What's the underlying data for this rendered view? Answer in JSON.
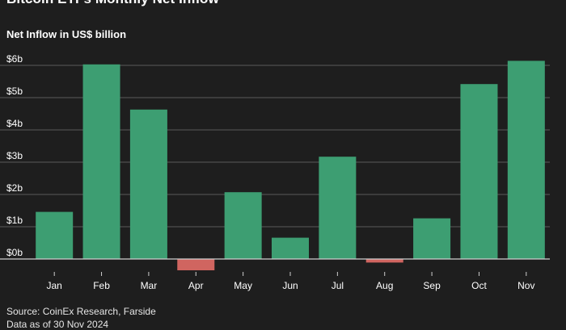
{
  "header": {
    "title": "Bitcoin ETFs Monthly Net Inflow",
    "subtitle": "Net Inflow in US$ billion"
  },
  "footer": {
    "source": "Source: CoinEx Research, Farside",
    "date_note": "Data as of 30 Nov 2024"
  },
  "colors": {
    "positive": "#3d9e72",
    "negative": "#d06560",
    "grid": "#5a5a5a",
    "zero_line": "#cfcfcf",
    "text": "#ffffff"
  },
  "chart_data": {
    "type": "bar",
    "title": "Bitcoin ETFs Monthly Net Inflow",
    "subtitle": "Net Inflow in US$ billion",
    "categories": [
      "Jan",
      "Feb",
      "Mar",
      "Apr",
      "May",
      "Jun",
      "Jul",
      "Aug",
      "Sep",
      "Oct",
      "Nov"
    ],
    "values": [
      1.46,
      6.03,
      4.63,
      -0.35,
      2.07,
      0.66,
      3.17,
      -0.11,
      1.26,
      5.42,
      6.14
    ],
    "ylim": [
      -0.5,
      6.4
    ],
    "yticks": [
      0,
      1,
      2,
      3,
      4,
      5,
      6
    ],
    "ytick_labels": [
      "$0b",
      "$1b",
      "$2b",
      "$3b",
      "$4b",
      "$5b",
      "$6b"
    ],
    "grid": true,
    "xlabel": "",
    "ylabel": ""
  }
}
